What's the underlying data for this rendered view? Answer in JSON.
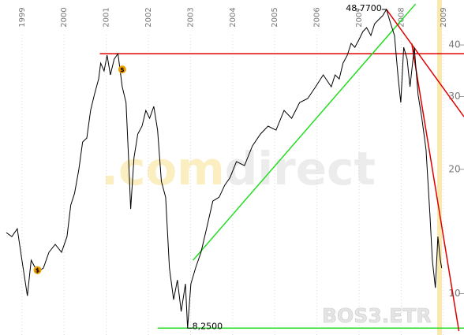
{
  "chart_data": {
    "type": "line",
    "color": "#000000",
    "log_scale": true,
    "xgrid": true,
    "xlim": [
      1998.48,
      2009.49
    ],
    "ylim": [
      7.94,
      51.4
    ],
    "xticks": [
      1999,
      2000,
      2001,
      2002,
      2003,
      2004,
      2005,
      2006,
      2007,
      2008,
      2009
    ],
    "yticks": [
      10,
      20,
      30,
      40
    ],
    "x": [
      1998.63,
      1998.76,
      1998.89,
      1999.0,
      1999.13,
      1999.22,
      1999.37,
      1999.51,
      1999.64,
      1999.79,
      1999.94,
      2000.07,
      2000.16,
      2000.25,
      2000.35,
      2000.44,
      2000.54,
      2000.63,
      2000.72,
      2000.82,
      2000.87,
      2000.95,
      2001.02,
      2001.1,
      2001.19,
      2001.28,
      2001.38,
      2001.47,
      2001.53,
      2001.58,
      2001.66,
      2001.75,
      2001.85,
      2001.94,
      2002.03,
      2002.13,
      2002.22,
      2002.31,
      2002.41,
      2002.5,
      2002.6,
      2002.69,
      2002.78,
      2002.88,
      2002.93,
      2003.01,
      2003.12,
      2003.25,
      2003.38,
      2003.53,
      2003.68,
      2003.81,
      2003.94,
      2004.09,
      2004.28,
      2004.47,
      2004.66,
      2004.84,
      2005.03,
      2005.22,
      2005.4,
      2005.59,
      2005.78,
      2005.97,
      2006.15,
      2006.34,
      2006.43,
      2006.53,
      2006.62,
      2006.72,
      2006.81,
      2006.9,
      2007.0,
      2007.09,
      2007.18,
      2007.28,
      2007.37,
      2007.46,
      2007.56,
      2007.65,
      2007.75,
      2007.84,
      2007.93,
      2007.99,
      2008.06,
      2008.14,
      2008.21,
      2008.31,
      2008.4,
      2008.49,
      2008.59,
      2008.68,
      2008.74,
      2008.81,
      2008.87,
      2008.93,
      2008.96
    ],
    "values": [
      14.05,
      13.74,
      14.36,
      12.05,
      9.88,
      12.05,
      11.28,
      11.53,
      12.59,
      13.16,
      12.59,
      13.74,
      16.39,
      17.5,
      19.97,
      23.29,
      23.81,
      27.77,
      30.32,
      33.11,
      36.15,
      34.6,
      37.78,
      33.85,
      36.96,
      38.11,
      31.69,
      29.02,
      21.34,
      16.03,
      21.34,
      24.34,
      25.44,
      27.77,
      26.58,
      28.39,
      24.88,
      18.7,
      17.12,
      11.53,
      9.67,
      10.79,
      9.05,
      10.56,
      8.25,
      10.56,
      11.53,
      12.59,
      14.36,
      16.75,
      17.12,
      18.29,
      19.11,
      20.87,
      20.42,
      22.79,
      24.34,
      25.44,
      24.88,
      27.77,
      26.58,
      29.02,
      29.67,
      31.69,
      33.85,
      31.69,
      33.85,
      33.11,
      36.15,
      37.78,
      40.35,
      39.48,
      41.25,
      43.1,
      44.06,
      42.17,
      45.04,
      46.04,
      47.07,
      48.77,
      45.04,
      42.17,
      33.11,
      29.02,
      39.48,
      36.96,
      31.69,
      39.48,
      30.32,
      26.58,
      22.29,
      15.68,
      12.05,
      10.33,
      13.74,
      12.05,
      11.53
    ],
    "annotations": [
      {
        "x": 2007.65,
        "y": 48.77,
        "label": "48,7700"
      },
      {
        "x": 2002.93,
        "y": 8.25,
        "label": "8,2500"
      }
    ],
    "trendlines": [
      {
        "color": "#e00000",
        "x": [
          2000.85,
          2009.49
        ],
        "y": [
          38.11,
          38.11
        ]
      },
      {
        "color": "#22dd22",
        "x": [
          2002.22,
          2009.49
        ],
        "y": [
          8.25,
          8.25
        ]
      },
      {
        "color": "#22dd22",
        "x": [
          2003.06,
          2008.34
        ],
        "y": [
          12.05,
          50.27
        ]
      },
      {
        "color": "#e00000",
        "x": [
          2007.65,
          2009.49
        ],
        "y": [
          48.77,
          26.81
        ]
      },
      {
        "color": "#e00000",
        "x": [
          2008.25,
          2009.37
        ],
        "y": [
          40.35,
          8.11
        ]
      }
    ],
    "events": [
      {
        "x": 1999.37,
        "y": 11.4,
        "label": "$"
      },
      {
        "x": 2001.38,
        "y": 34.9,
        "label": "$"
      }
    ],
    "highlight_x": 2008.91,
    "watermark": [
      ".com",
      "direct"
    ],
    "symbol": "BOS3.ETR"
  }
}
